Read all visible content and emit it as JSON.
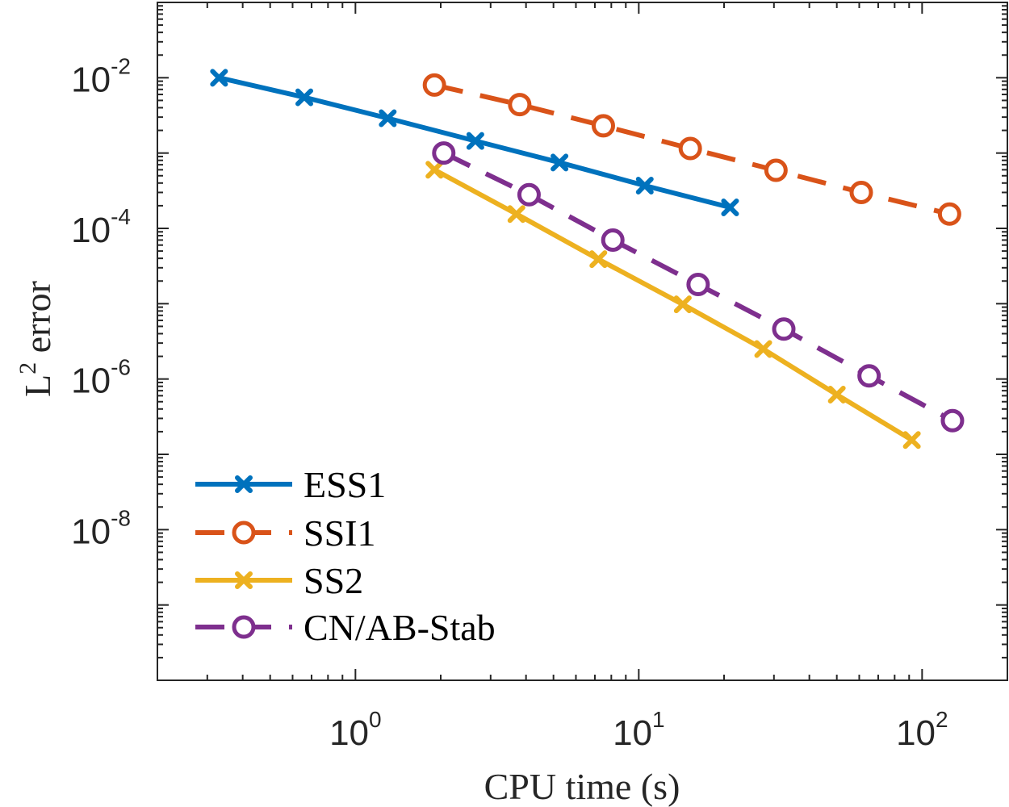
{
  "chart_data": {
    "type": "line",
    "xscale": "log",
    "yscale": "log",
    "xlim": [
      0.2,
      200
    ],
    "ylim": [
      1e-10,
      0.1
    ],
    "xlabel": "CPU time (s)",
    "ylabel": "L 2 error",
    "ylabel_base": "L",
    "ylabel_sup": "2",
    "ylabel_rest": " error",
    "grid": false,
    "legend_position": "bottom-left",
    "x_ticks": [
      {
        "value": 1,
        "base": "10",
        "exp": "0"
      },
      {
        "value": 10,
        "base": "10",
        "exp": "1"
      },
      {
        "value": 100,
        "base": "10",
        "exp": "2"
      }
    ],
    "y_ticks": [
      {
        "value": 0.01,
        "base": "10",
        "exp": "-2"
      },
      {
        "value": 0.0001,
        "base": "10",
        "exp": "-4"
      },
      {
        "value": 1e-06,
        "base": "10",
        "exp": "-6"
      },
      {
        "value": 1e-08,
        "base": "10",
        "exp": "-8"
      }
    ],
    "series": [
      {
        "name": "ESS1",
        "color": "#0072BD",
        "dashed": false,
        "marker": "x",
        "x": [
          0.33,
          0.66,
          1.3,
          2.65,
          5.25,
          10.5,
          21
        ],
        "y": [
          0.01,
          0.0055,
          0.0029,
          0.00145,
          0.00075,
          0.00037,
          0.00019
        ]
      },
      {
        "name": "SSI1",
        "color": "#D95319",
        "dashed": true,
        "marker": "o",
        "x": [
          1.9,
          3.8,
          7.5,
          15.2,
          30.5,
          61,
          125
        ],
        "y": [
          0.008,
          0.0044,
          0.0023,
          0.00115,
          0.00059,
          0.0003,
          0.000155
        ]
      },
      {
        "name": "SS2",
        "color": "#EDB120",
        "dashed": false,
        "marker": "x",
        "x": [
          1.9,
          3.7,
          7.2,
          14.3,
          27.5,
          50,
          92
        ],
        "y": [
          0.0006,
          0.000155,
          3.9e-05,
          9.8e-06,
          2.5e-06,
          6.2e-07,
          1.55e-07
        ]
      },
      {
        "name": "CN/AB-Stab",
        "color": "#7E2F8E",
        "dashed": true,
        "marker": "o",
        "x": [
          2.05,
          4.1,
          8.1,
          16.2,
          32.5,
          65,
          128
        ],
        "y": [
          0.001,
          0.00028,
          7e-05,
          1.8e-05,
          4.6e-06,
          1.1e-06,
          2.8e-07
        ]
      }
    ]
  }
}
